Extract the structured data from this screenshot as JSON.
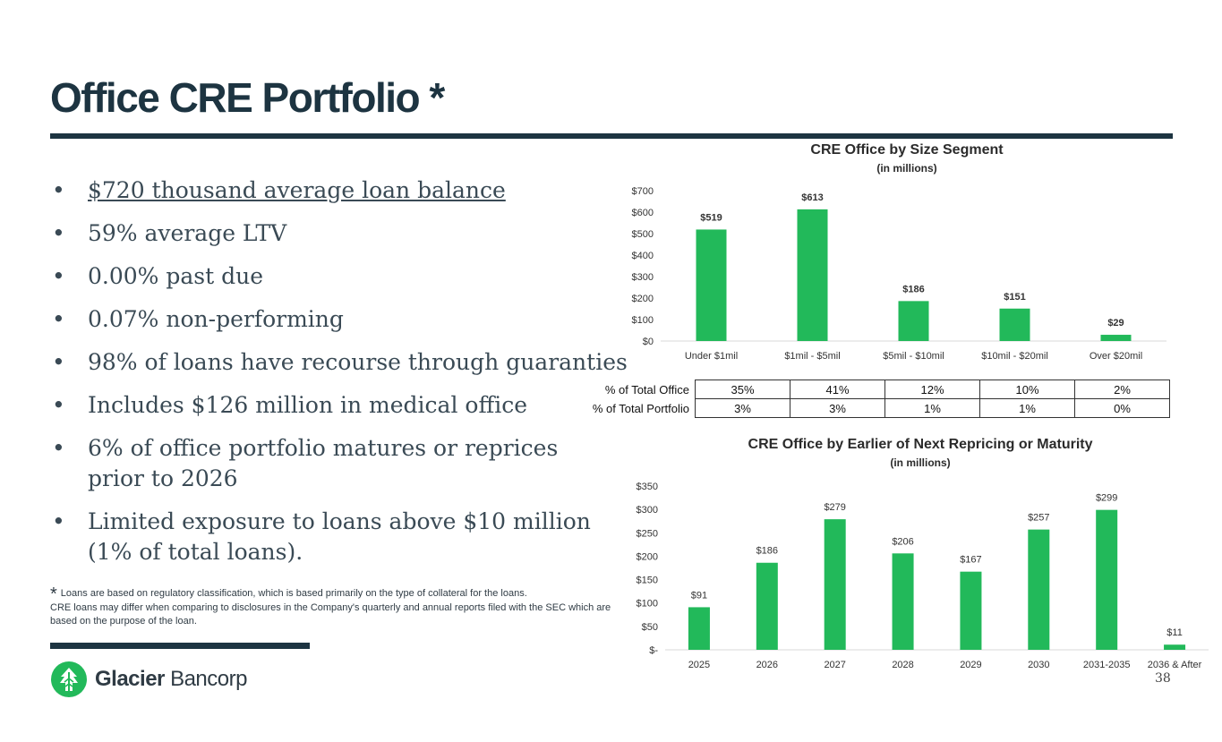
{
  "slide": {
    "title": "Office CRE Portfolio *",
    "page_number": "38"
  },
  "bullets": [
    "$720 thousand average loan balance",
    "59% average LTV",
    "0.00% past due",
    "0.07% non-performing",
    "98% of loans have recourse through guaranties",
    "Includes $126 million in medical office",
    "6% of office portfolio matures or reprices prior to 2026",
    "Limited exposure to loans above $10 million (1% of total loans)."
  ],
  "footnote": {
    "marker": "*",
    "line1": "Loans are based on regulatory classification, which is based primarily on the type of collateral for the loans.",
    "line2": "CRE loans may differ when comparing to disclosures in the Company's quarterly and annual reports filed with the SEC which are based on the purpose of the loan."
  },
  "logo": {
    "brand_bold": "Glacier",
    "brand_light": "Bancorp",
    "icon": "glacier-logo-icon"
  },
  "colors": {
    "bar": "#22b95a",
    "dark": "#1d3441"
  },
  "pct_table": {
    "rows": [
      {
        "label": "% of Total Office",
        "values": [
          "35%",
          "41%",
          "12%",
          "10%",
          "2%"
        ]
      },
      {
        "label": "% of Total Portfolio",
        "values": [
          "3%",
          "3%",
          "1%",
          "1%",
          "0%"
        ]
      }
    ]
  },
  "chart_data": [
    {
      "type": "bar",
      "title": "CRE Office by Size Segment",
      "subtitle": "(in millions)",
      "categories": [
        "Under $1mil",
        "$1mil - $5mil",
        "$5mil - $10mil",
        "$10mil - $20mil",
        "Over $20mil"
      ],
      "values": [
        519,
        613,
        186,
        151,
        29
      ],
      "data_labels": [
        "$519",
        "$613",
        "$186",
        "$151",
        "$29"
      ],
      "ylim": [
        0,
        700
      ],
      "yticks": [
        0,
        100,
        200,
        300,
        400,
        500,
        600,
        700
      ],
      "ytick_labels": [
        "$0",
        "$100",
        "$200",
        "$300",
        "$400",
        "$500",
        "$600",
        "$700"
      ],
      "xlabel": "",
      "ylabel": ""
    },
    {
      "type": "bar",
      "title": "CRE Office by Earlier of Next Repricing or Maturity",
      "subtitle": "(in millions)",
      "categories": [
        "2025",
        "2026",
        "2027",
        "2028",
        "2029",
        "2030",
        "2031-2035",
        "2036 & After"
      ],
      "values": [
        91,
        186,
        279,
        206,
        167,
        257,
        299,
        11
      ],
      "data_labels": [
        "$91",
        "$186",
        "$279",
        "$206",
        "$167",
        "$257",
        "$299",
        "$11"
      ],
      "ylim": [
        0,
        350
      ],
      "yticks": [
        0,
        50,
        100,
        150,
        200,
        250,
        300,
        350
      ],
      "ytick_labels": [
        "$-",
        "$50",
        "$100",
        "$150",
        "$200",
        "$250",
        "$300",
        "$350"
      ],
      "xlabel": "",
      "ylabel": ""
    }
  ]
}
